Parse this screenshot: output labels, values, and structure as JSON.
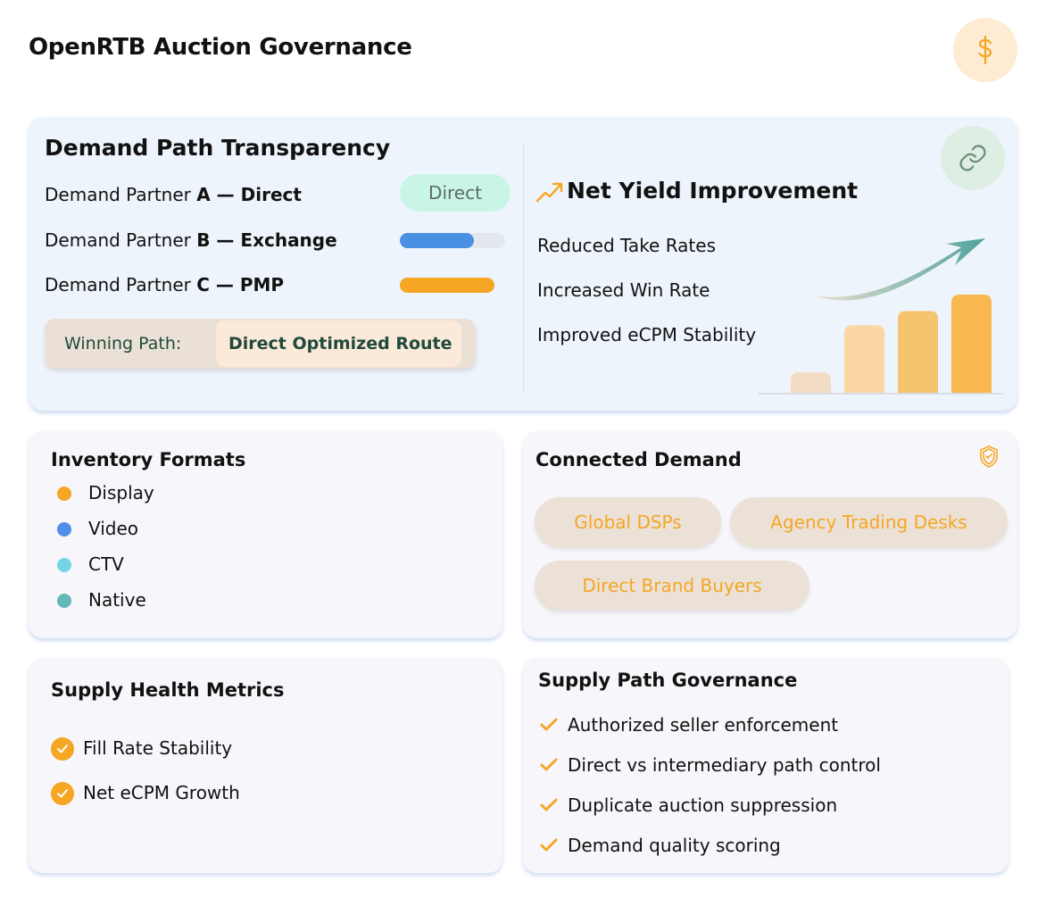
{
  "header": {
    "title": "OpenRTB Auction Governance",
    "icon": "dollar-icon"
  },
  "transparency": {
    "title": "Demand Path Transparency",
    "partners": [
      {
        "prefix": "Demand Partner ",
        "letter": "A",
        "sep": " — ",
        "type": "Direct",
        "badge": "Direct"
      },
      {
        "prefix": "Demand Partner ",
        "letter": "B",
        "sep": " — ",
        "type": "Exchange",
        "progress": 0.7,
        "color": "#4a90e2"
      },
      {
        "prefix": "Demand Partner ",
        "letter": "C",
        "sep": " — ",
        "type": "PMP",
        "progress": 1.0,
        "color": "#f5a623"
      }
    ],
    "winning_label": "Winning Path:",
    "winning_value": "Direct Optimized Route"
  },
  "yield": {
    "title": "Net Yield Improvement",
    "items": [
      "Reduced Take Rates",
      "Increased Win Rate",
      "Improved eCPM Stability"
    ],
    "bars": [
      1,
      3.3,
      4,
      4.8
    ],
    "bar_colors": [
      "#f2dcc4",
      "#fbd7a3",
      "#f6c36f",
      "#f8b84f"
    ]
  },
  "formats": {
    "title": "Inventory Formats",
    "items": [
      {
        "label": "Display",
        "color": "#f5a623"
      },
      {
        "label": "Video",
        "color": "#4f8fea"
      },
      {
        "label": "CTV",
        "color": "#74d4e6"
      },
      {
        "label": "Native",
        "color": "#63b8b8"
      }
    ]
  },
  "demand": {
    "title": "Connected Demand",
    "chips": [
      "Global DSPs",
      "Agency Trading Desks",
      "Direct Brand Buyers"
    ]
  },
  "health": {
    "title": "Supply Health Metrics",
    "items": [
      "Fill Rate Stability",
      "Net eCPM Growth"
    ]
  },
  "governance": {
    "title": "Supply Path Governance",
    "items": [
      "Authorized seller enforcement",
      "Direct vs intermediary path control",
      "Duplicate auction suppression",
      "Demand quality scoring"
    ]
  }
}
